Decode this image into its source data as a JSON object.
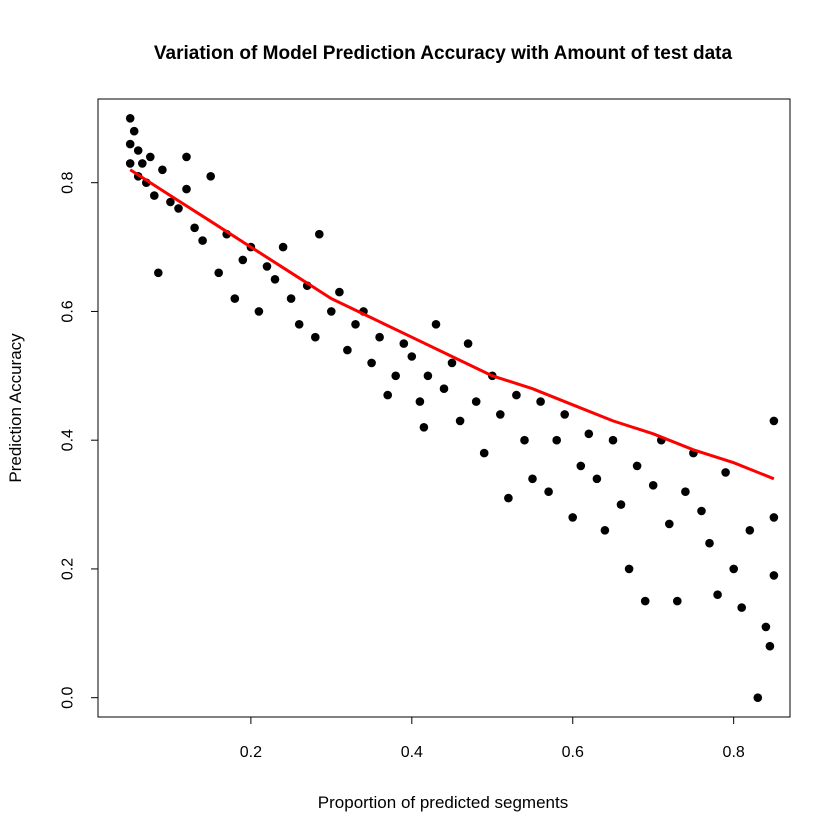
{
  "chart_data": {
    "type": "scatter",
    "title": "Variation of Model Prediction Accuracy with Amount of test data",
    "xlabel": "Proportion of predicted segments",
    "ylabel": "Prediction Accuracy",
    "xlim": [
      0.01,
      0.87
    ],
    "ylim": [
      -0.03,
      0.93
    ],
    "x_ticks": [
      0.2,
      0.4,
      0.6,
      0.8
    ],
    "x_tick_labels": [
      "0.2",
      "0.4",
      "0.6",
      "0.8"
    ],
    "y_ticks": [
      0.0,
      0.2,
      0.4,
      0.6,
      0.8
    ],
    "y_tick_labels": [
      "0.0",
      "0.2",
      "0.4",
      "0.6",
      "0.8"
    ],
    "grid": false,
    "legend": "none",
    "colors": {
      "points": "#000000",
      "trend": "#ff0000"
    },
    "series": [
      {
        "kind": "points",
        "points": [
          [
            0.05,
            0.9
          ],
          [
            0.05,
            0.86
          ],
          [
            0.05,
            0.83
          ],
          [
            0.055,
            0.88
          ],
          [
            0.06,
            0.85
          ],
          [
            0.06,
            0.81
          ],
          [
            0.065,
            0.83
          ],
          [
            0.07,
            0.8
          ],
          [
            0.075,
            0.84
          ],
          [
            0.08,
            0.78
          ],
          [
            0.085,
            0.66
          ],
          [
            0.09,
            0.82
          ],
          [
            0.1,
            0.77
          ],
          [
            0.11,
            0.76
          ],
          [
            0.12,
            0.79
          ],
          [
            0.12,
            0.84
          ],
          [
            0.13,
            0.73
          ],
          [
            0.14,
            0.71
          ],
          [
            0.15,
            0.81
          ],
          [
            0.16,
            0.66
          ],
          [
            0.17,
            0.72
          ],
          [
            0.18,
            0.62
          ],
          [
            0.19,
            0.68
          ],
          [
            0.2,
            0.7
          ],
          [
            0.21,
            0.6
          ],
          [
            0.22,
            0.67
          ],
          [
            0.23,
            0.65
          ],
          [
            0.24,
            0.7
          ],
          [
            0.25,
            0.62
          ],
          [
            0.26,
            0.58
          ],
          [
            0.27,
            0.64
          ],
          [
            0.28,
            0.56
          ],
          [
            0.285,
            0.72
          ],
          [
            0.3,
            0.6
          ],
          [
            0.31,
            0.63
          ],
          [
            0.32,
            0.54
          ],
          [
            0.33,
            0.58
          ],
          [
            0.34,
            0.6
          ],
          [
            0.35,
            0.52
          ],
          [
            0.36,
            0.56
          ],
          [
            0.37,
            0.47
          ],
          [
            0.38,
            0.5
          ],
          [
            0.39,
            0.55
          ],
          [
            0.4,
            0.53
          ],
          [
            0.41,
            0.46
          ],
          [
            0.415,
            0.42
          ],
          [
            0.42,
            0.5
          ],
          [
            0.43,
            0.58
          ],
          [
            0.44,
            0.48
          ],
          [
            0.45,
            0.52
          ],
          [
            0.46,
            0.43
          ],
          [
            0.47,
            0.55
          ],
          [
            0.48,
            0.46
          ],
          [
            0.49,
            0.38
          ],
          [
            0.5,
            0.5
          ],
          [
            0.51,
            0.44
          ],
          [
            0.52,
            0.31
          ],
          [
            0.53,
            0.47
          ],
          [
            0.54,
            0.4
          ],
          [
            0.55,
            0.34
          ],
          [
            0.56,
            0.46
          ],
          [
            0.57,
            0.32
          ],
          [
            0.58,
            0.4
          ],
          [
            0.59,
            0.44
          ],
          [
            0.6,
            0.28
          ],
          [
            0.61,
            0.36
          ],
          [
            0.62,
            0.41
          ],
          [
            0.63,
            0.34
          ],
          [
            0.64,
            0.26
          ],
          [
            0.65,
            0.4
          ],
          [
            0.66,
            0.3
          ],
          [
            0.67,
            0.2
          ],
          [
            0.68,
            0.36
          ],
          [
            0.69,
            0.15
          ],
          [
            0.7,
            0.33
          ],
          [
            0.71,
            0.4
          ],
          [
            0.72,
            0.27
          ],
          [
            0.73,
            0.15
          ],
          [
            0.74,
            0.32
          ],
          [
            0.75,
            0.38
          ],
          [
            0.76,
            0.29
          ],
          [
            0.77,
            0.24
          ],
          [
            0.78,
            0.16
          ],
          [
            0.79,
            0.35
          ],
          [
            0.8,
            0.2
          ],
          [
            0.81,
            0.14
          ],
          [
            0.82,
            0.26
          ],
          [
            0.83,
            0.0
          ],
          [
            0.84,
            0.11
          ],
          [
            0.845,
            0.08
          ],
          [
            0.85,
            0.19
          ],
          [
            0.85,
            0.28
          ],
          [
            0.85,
            0.43
          ]
        ]
      },
      {
        "kind": "trend",
        "x": [
          0.05,
          0.1,
          0.15,
          0.2,
          0.25,
          0.3,
          0.35,
          0.4,
          0.45,
          0.5,
          0.55,
          0.6,
          0.65,
          0.7,
          0.75,
          0.8,
          0.85
        ],
        "y": [
          0.82,
          0.78,
          0.74,
          0.7,
          0.66,
          0.62,
          0.59,
          0.56,
          0.53,
          0.5,
          0.48,
          0.455,
          0.43,
          0.41,
          0.385,
          0.365,
          0.34
        ]
      }
    ]
  }
}
